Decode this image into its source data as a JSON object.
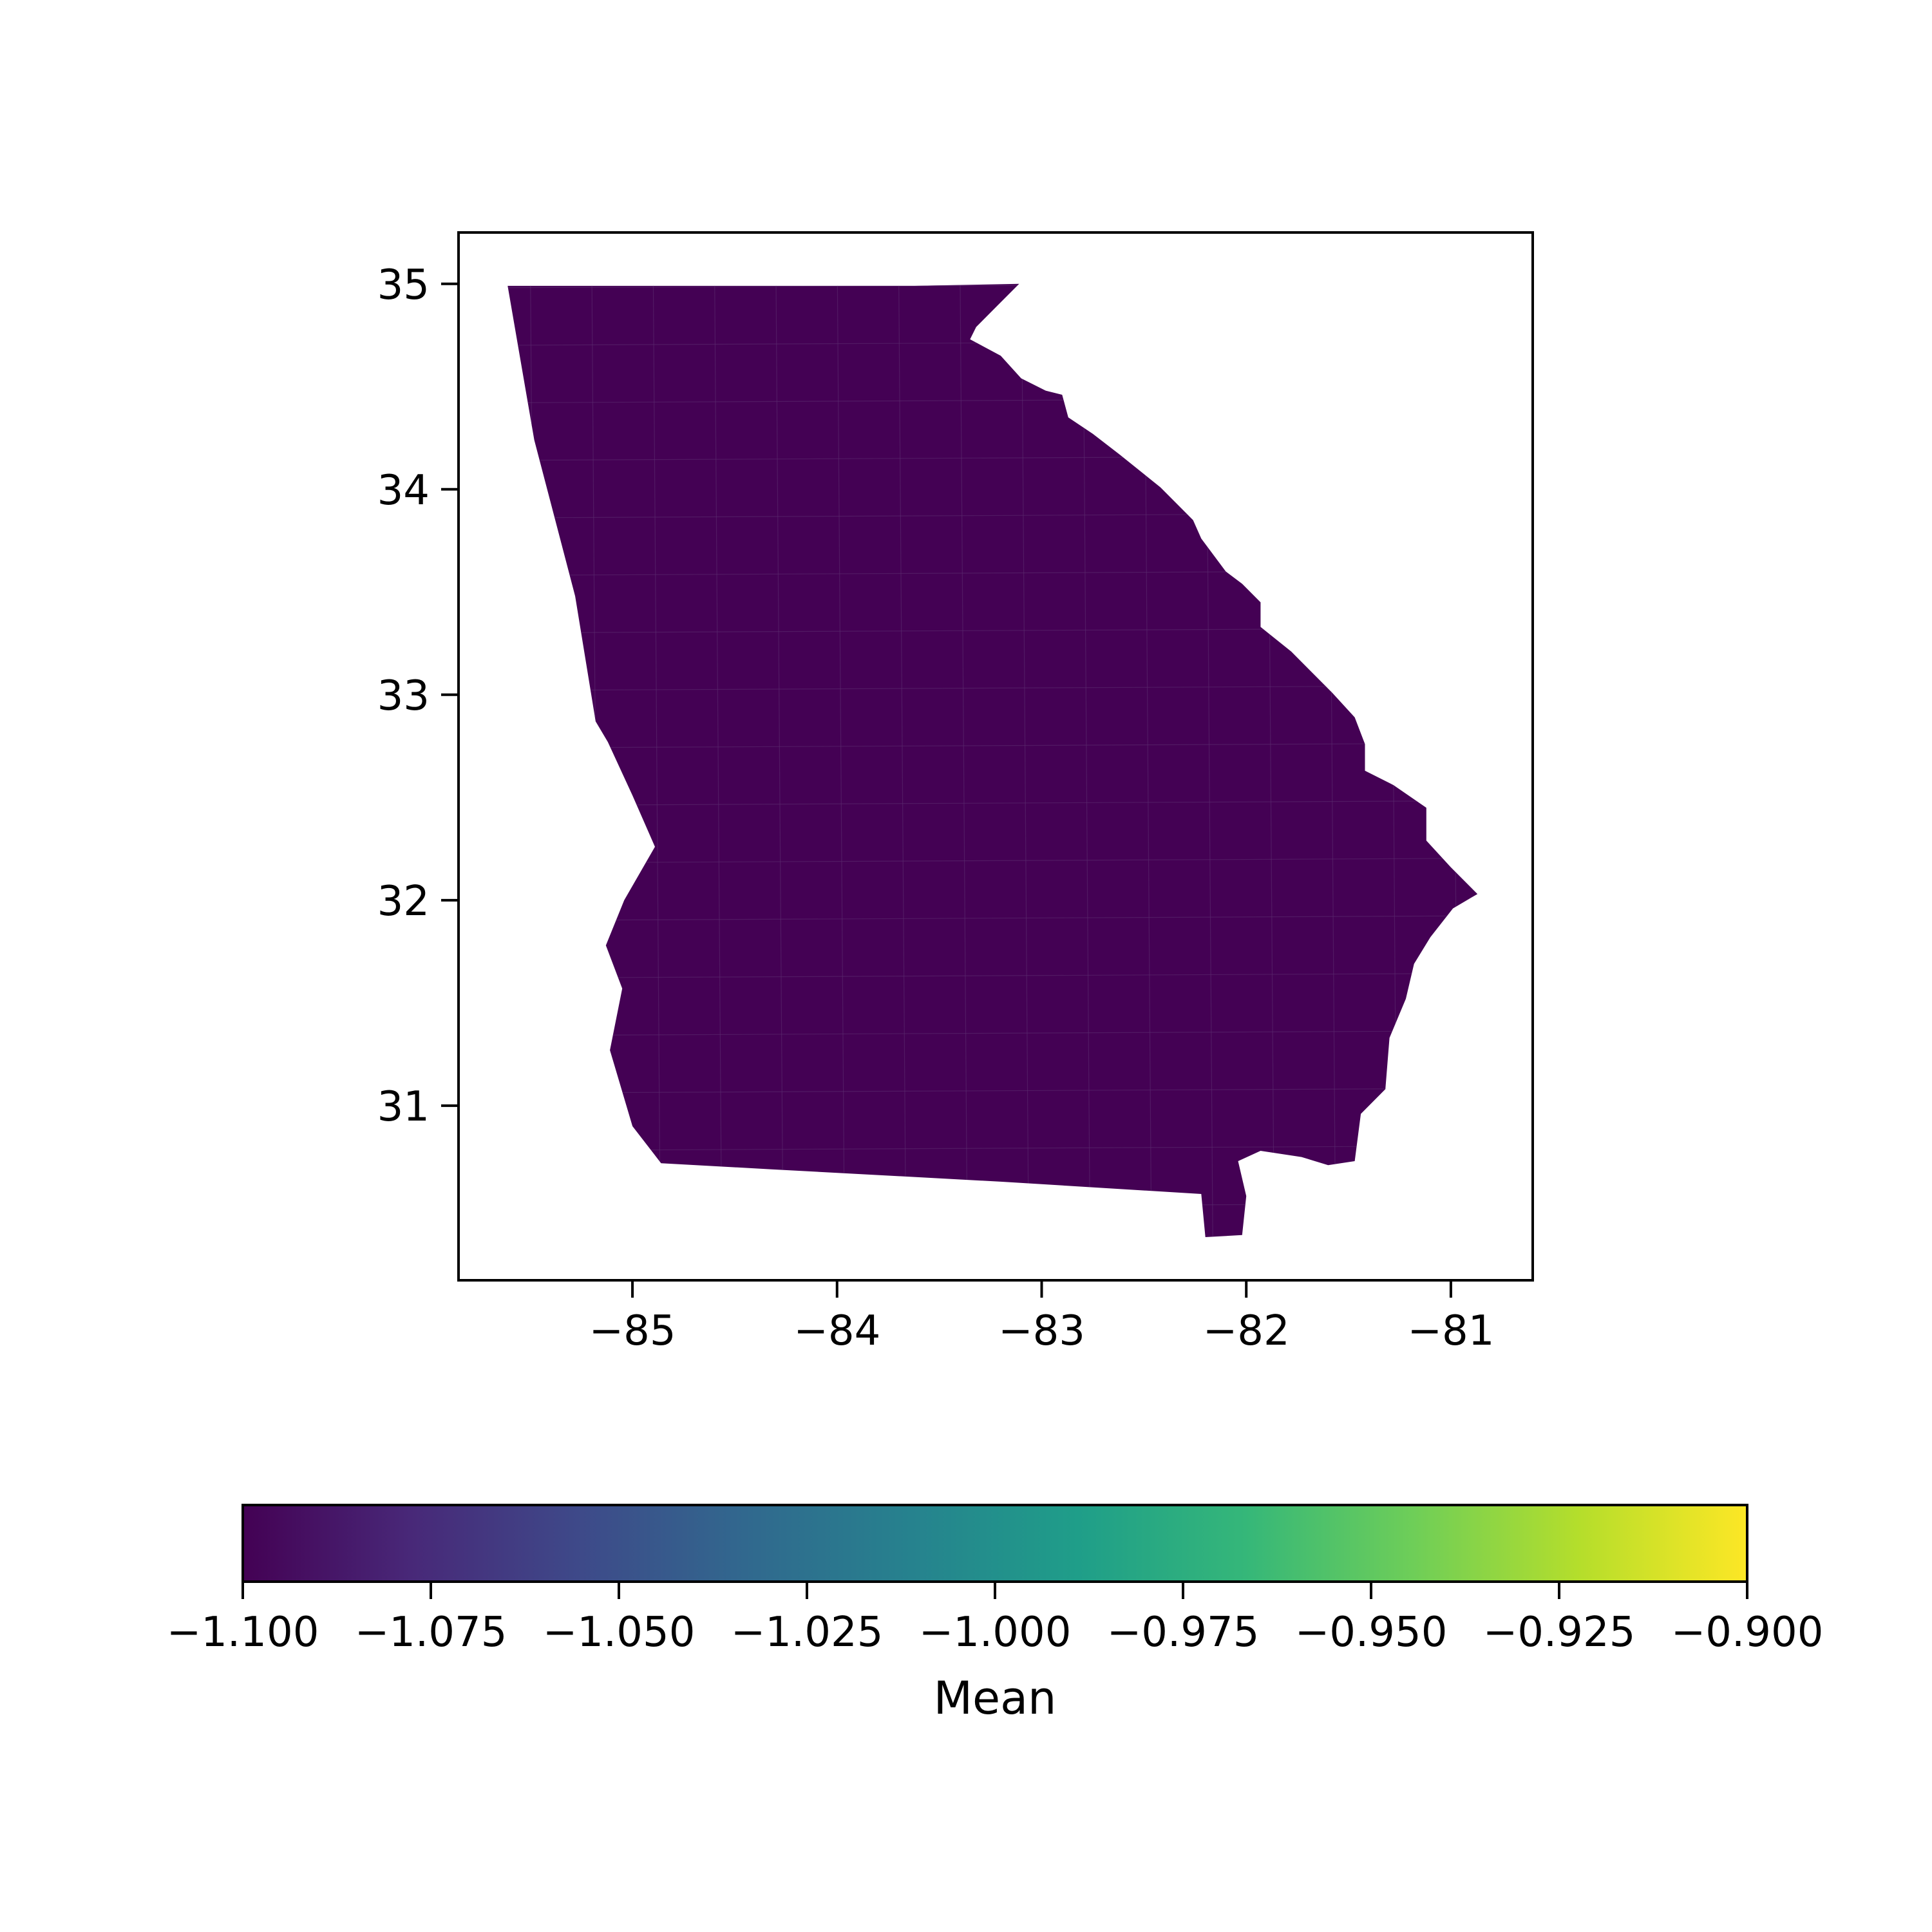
{
  "chart_data": {
    "type": "choropleth",
    "region": "Georgia counties",
    "title": "",
    "xlabel": "",
    "ylabel": "",
    "xlim": [
      -85.85,
      -80.6
    ],
    "ylim": [
      30.15,
      35.25
    ],
    "x_ticks": [
      -85,
      -84,
      -83,
      -82,
      -81
    ],
    "y_ticks": [
      31,
      32,
      33,
      34,
      35
    ],
    "x_tick_labels": [
      "−85",
      "−84",
      "−83",
      "−82",
      "−81"
    ],
    "y_tick_labels": [
      "31",
      "32",
      "33",
      "34",
      "35"
    ],
    "fill_value": -1.1,
    "fill_color": "#440154",
    "grid": false,
    "colorbar": {
      "label": "Mean",
      "colormap": "viridis",
      "orientation": "horizontal",
      "placement": "bottom",
      "range": [
        -1.1,
        -0.9
      ],
      "ticks": [
        -1.1,
        -1.075,
        -1.05,
        -1.025,
        -1.0,
        -0.975,
        -0.95,
        -0.925,
        -0.9
      ],
      "tick_labels": [
        "−1.100",
        "−1.075",
        "−1.050",
        "−1.025",
        "−1.000",
        "−0.975",
        "−0.950",
        "−0.925",
        "−0.900"
      ],
      "stops": [
        "#440154",
        "#482878",
        "#3e4989",
        "#31688e",
        "#26828e",
        "#1f9e89",
        "#35b779",
        "#6ece58",
        "#b5de2b",
        "#fde725"
      ]
    },
    "state_outline": [
      [
        -85.61,
        34.99
      ],
      [
        -85.0,
        34.99
      ],
      [
        -84.32,
        34.99
      ],
      [
        -83.62,
        34.99
      ],
      [
        -83.11,
        35.0
      ],
      [
        -83.22,
        34.89
      ],
      [
        -83.32,
        34.79
      ],
      [
        -83.35,
        34.73
      ],
      [
        -83.2,
        34.65
      ],
      [
        -83.1,
        34.54
      ],
      [
        -82.98,
        34.48
      ],
      [
        -82.9,
        34.46
      ],
      [
        -82.87,
        34.35
      ],
      [
        -82.75,
        34.27
      ],
      [
        -82.62,
        34.17
      ],
      [
        -82.42,
        34.01
      ],
      [
        -82.26,
        33.85
      ],
      [
        -82.22,
        33.76
      ],
      [
        -82.1,
        33.6
      ],
      [
        -82.02,
        33.54
      ],
      [
        -81.93,
        33.45
      ],
      [
        -81.93,
        33.33
      ],
      [
        -81.78,
        33.21
      ],
      [
        -81.58,
        33.01
      ],
      [
        -81.47,
        32.89
      ],
      [
        -81.42,
        32.76
      ],
      [
        -81.42,
        32.63
      ],
      [
        -81.28,
        32.56
      ],
      [
        -81.12,
        32.45
      ],
      [
        -81.12,
        32.29
      ],
      [
        -81.0,
        32.16
      ],
      [
        -80.87,
        32.03
      ],
      [
        -80.99,
        31.96
      ],
      [
        -81.1,
        31.82
      ],
      [
        -81.18,
        31.69
      ],
      [
        -81.22,
        31.52
      ],
      [
        -81.3,
        31.33
      ],
      [
        -81.32,
        31.08
      ],
      [
        -81.44,
        30.96
      ],
      [
        -81.47,
        30.73
      ],
      [
        -81.6,
        30.71
      ],
      [
        -81.73,
        30.75
      ],
      [
        -81.93,
        30.78
      ],
      [
        -82.04,
        30.73
      ],
      [
        -82.0,
        30.56
      ],
      [
        -82.02,
        30.37
      ],
      [
        -82.2,
        30.36
      ],
      [
        -82.22,
        30.57
      ],
      [
        -83.2,
        30.63
      ],
      [
        -84.32,
        30.69
      ],
      [
        -84.86,
        30.72
      ],
      [
        -85.0,
        30.9
      ],
      [
        -85.11,
        31.27
      ],
      [
        -85.05,
        31.57
      ],
      [
        -85.13,
        31.78
      ],
      [
        -85.04,
        32.0
      ],
      [
        -84.89,
        32.26
      ],
      [
        -85.0,
        32.51
      ],
      [
        -85.12,
        32.77
      ],
      [
        -85.18,
        32.87
      ],
      [
        -85.28,
        33.48
      ],
      [
        -85.48,
        34.24
      ],
      [
        -85.61,
        34.99
      ]
    ]
  }
}
